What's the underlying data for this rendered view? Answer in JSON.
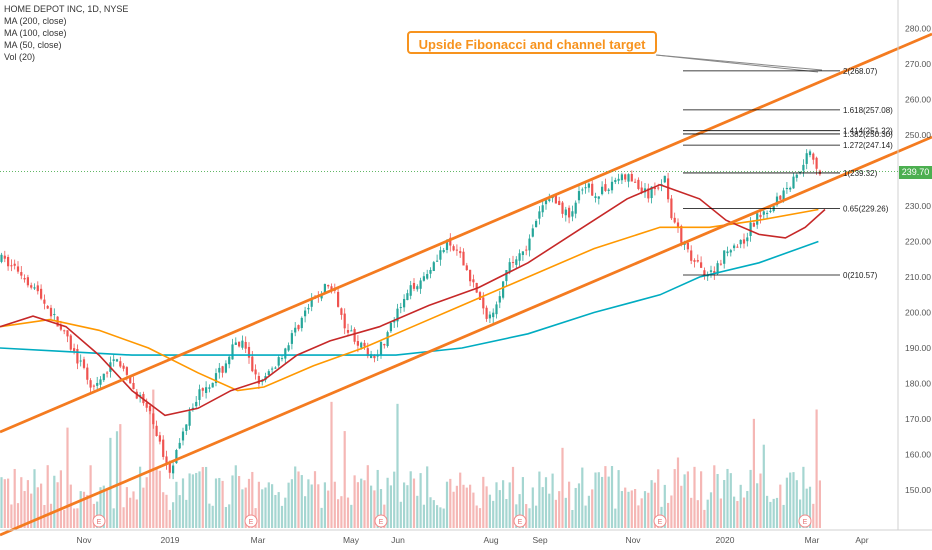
{
  "legend": {
    "title": "HOME DEPOT INC, 1D, NYSE",
    "ma200": "MA (200, close)",
    "ma100": "MA (100, close)",
    "ma50": "MA (50, close)",
    "vol": "Vol (20)"
  },
  "annotation": "Upside Fibonacci and channel target",
  "last_price": "239.70",
  "colors": {
    "up": "#26a69a",
    "down": "#ef5350",
    "ma200": "#00acc1",
    "ma100": "#ff9800",
    "ma50": "#c62828",
    "channel": "#f47b20",
    "fib": "#000000"
  },
  "chart_data": {
    "type": "candlestick",
    "title": "HOME DEPOT INC, 1D, NYSE",
    "x_ticks": [
      "Nov",
      "2019",
      "Mar",
      "May",
      "Jun",
      "Aug",
      "Sep",
      "Nov",
      "2020",
      "Mar",
      "Apr"
    ],
    "y_ticks": [
      150,
      160,
      170,
      180,
      190,
      200,
      210,
      220,
      230,
      240,
      250,
      260,
      270,
      280
    ],
    "ylim": [
      140,
      285
    ],
    "fib_levels": [
      {
        "label": "2(268.07)",
        "value": 268.07
      },
      {
        "label": "1.618(257.08)",
        "value": 257.08
      },
      {
        "label": "1.414(251.22)",
        "value": 251.22
      },
      {
        "label": "1.382(250.30)",
        "value": 250.3
      },
      {
        "label": "1.272(247.14)",
        "value": 247.14
      },
      {
        "label": "1(239.32)",
        "value": 239.32
      },
      {
        "label": "0.65(229.26)",
        "value": 229.26
      },
      {
        "label": "0(210.57)",
        "value": 210.57
      }
    ],
    "price_path": [
      [
        0,
        215
      ],
      [
        5,
        212
      ],
      [
        10,
        207
      ],
      [
        15,
        200
      ],
      [
        20,
        192
      ],
      [
        24,
        185
      ],
      [
        28,
        178
      ],
      [
        31,
        182
      ],
      [
        35,
        188
      ],
      [
        38,
        181
      ],
      [
        42,
        176
      ],
      [
        46,
        169
      ],
      [
        49,
        160
      ],
      [
        51,
        156
      ],
      [
        54,
        163
      ],
      [
        57,
        173
      ],
      [
        61,
        179
      ],
      [
        64,
        181
      ],
      [
        67,
        184
      ],
      [
        70,
        190
      ],
      [
        73,
        191
      ],
      [
        76,
        184
      ],
      [
        79,
        180
      ],
      [
        82,
        184
      ],
      [
        86,
        190
      ],
      [
        89,
        195
      ],
      [
        92,
        200
      ],
      [
        96,
        205
      ],
      [
        99,
        208
      ],
      [
        102,
        203
      ],
      [
        104,
        197
      ],
      [
        107,
        193
      ],
      [
        110,
        189
      ],
      [
        113,
        188
      ],
      [
        116,
        192
      ],
      [
        119,
        198
      ],
      [
        122,
        203
      ],
      [
        125,
        208
      ],
      [
        128,
        210
      ],
      [
        132,
        216
      ],
      [
        135,
        219
      ],
      [
        138,
        217
      ],
      [
        141,
        212
      ],
      [
        144,
        206
      ],
      [
        146,
        200
      ],
      [
        148,
        199
      ],
      [
        151,
        206
      ],
      [
        154,
        213
      ],
      [
        157,
        217
      ],
      [
        160,
        220
      ],
      [
        163,
        228
      ],
      [
        166,
        233
      ],
      [
        169,
        230
      ],
      [
        172,
        227
      ],
      [
        175,
        233
      ],
      [
        178,
        235
      ],
      [
        181,
        233
      ],
      [
        184,
        236
      ],
      [
        187,
        238
      ],
      [
        190,
        238
      ],
      [
        193,
        235
      ],
      [
        196,
        233
      ],
      [
        199,
        236
      ],
      [
        201,
        238
      ],
      [
        203,
        228
      ],
      [
        206,
        220
      ],
      [
        209,
        215
      ],
      [
        212,
        212
      ],
      [
        215,
        211
      ],
      [
        218,
        215
      ],
      [
        221,
        219
      ],
      [
        224,
        219
      ],
      [
        227,
        224
      ],
      [
        230,
        228
      ],
      [
        233,
        230
      ],
      [
        236,
        233
      ],
      [
        239,
        236
      ],
      [
        242,
        241
      ],
      [
        245,
        246
      ],
      [
        248,
        239
      ]
    ],
    "ma200_path": [
      [
        0,
        190
      ],
      [
        20,
        189
      ],
      [
        40,
        188
      ],
      [
        60,
        188
      ],
      [
        80,
        188
      ],
      [
        100,
        188
      ],
      [
        120,
        188
      ],
      [
        140,
        190
      ],
      [
        160,
        194
      ],
      [
        180,
        200
      ],
      [
        200,
        205
      ],
      [
        212,
        210
      ],
      [
        230,
        214
      ],
      [
        248,
        220
      ]
    ],
    "ma100_path": [
      [
        0,
        196
      ],
      [
        15,
        198
      ],
      [
        30,
        195
      ],
      [
        45,
        190
      ],
      [
        60,
        183
      ],
      [
        72,
        178
      ],
      [
        80,
        179
      ],
      [
        95,
        185
      ],
      [
        110,
        190
      ],
      [
        125,
        196
      ],
      [
        140,
        202
      ],
      [
        160,
        210
      ],
      [
        180,
        218
      ],
      [
        200,
        224
      ],
      [
        215,
        224
      ],
      [
        230,
        226
      ],
      [
        248,
        229
      ]
    ],
    "ma50_path": [
      [
        0,
        196
      ],
      [
        10,
        199
      ],
      [
        20,
        196
      ],
      [
        30,
        188
      ],
      [
        40,
        178
      ],
      [
        50,
        171
      ],
      [
        60,
        173
      ],
      [
        70,
        178
      ],
      [
        80,
        181
      ],
      [
        90,
        188
      ],
      [
        100,
        192
      ],
      [
        115,
        196
      ],
      [
        130,
        202
      ],
      [
        145,
        207
      ],
      [
        160,
        214
      ],
      [
        175,
        223
      ],
      [
        190,
        232
      ],
      [
        200,
        236
      ],
      [
        212,
        232
      ],
      [
        220,
        226
      ],
      [
        230,
        222
      ],
      [
        238,
        221
      ],
      [
        244,
        224
      ],
      [
        250,
        229
      ]
    ]
  }
}
